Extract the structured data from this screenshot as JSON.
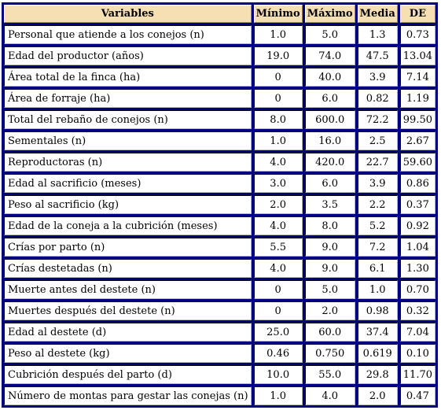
{
  "table": {
    "headers": [
      "Variables",
      "Mínimo",
      "Máximo",
      "Media",
      "DE"
    ],
    "rows": [
      [
        "Personal que atiende a los conejos (n)",
        "1.0",
        "5.0",
        "1.3",
        "0.73"
      ],
      [
        "Edad del productor (años)",
        "19.0",
        "74.0",
        "47.5",
        "13.04"
      ],
      [
        "Área total de la finca (ha)",
        "0",
        "40.0",
        "3.9",
        "7.14"
      ],
      [
        "Área de forraje (ha)",
        "0",
        "6.0",
        "0.82",
        "1.19"
      ],
      [
        "Total del rebaño de conejos (n)",
        "8.0",
        "600.0",
        "72.2",
        "99.50"
      ],
      [
        "Sementales (n)",
        "1.0",
        "16.0",
        "2.5",
        "2.67"
      ],
      [
        "Reproductoras (n)",
        "4.0",
        "420.0",
        "22.7",
        "59.60"
      ],
      [
        "Edad al sacrificio (meses)",
        "3.0",
        "6.0",
        "3.9",
        "0.86"
      ],
      [
        "Peso al sacrificio (kg)",
        "2.0",
        "3.5",
        "2.2",
        "0.37"
      ],
      [
        "Edad de la coneja a la cubrición (meses)",
        "4.0",
        "8.0",
        "5.2",
        "0.92"
      ],
      [
        "Crías por parto (n)",
        "5.5",
        "9.0",
        "7.2",
        "1.04"
      ],
      [
        "Crías destetadas (n)",
        "4.0",
        "9.0",
        "6.1",
        "1.30"
      ],
      [
        "Muerte antes del destete (n)",
        "0",
        "5.0",
        "1.0",
        "0.70"
      ],
      [
        "Muertes después del destete (n)",
        "0",
        "2.0",
        "0.98",
        "0.32"
      ],
      [
        "Edad al destete (d)",
        "25.0",
        "60.0",
        "37.4",
        "7.04"
      ],
      [
        "Peso al destete (kg)",
        "0.46",
        "0.750",
        "0.619",
        "0.10"
      ],
      [
        "Cubrición después del parto (d)",
        "10.0",
        "55.0",
        "29.8",
        "11.70"
      ],
      [
        "Número de montas para gestar las conejas (n)",
        "1.0",
        "4.0",
        "2.0",
        "0.47"
      ]
    ]
  },
  "colors": {
    "frame": "#000080",
    "header_bg": "#f5dfb3",
    "cell_bg": "#ffffff"
  }
}
